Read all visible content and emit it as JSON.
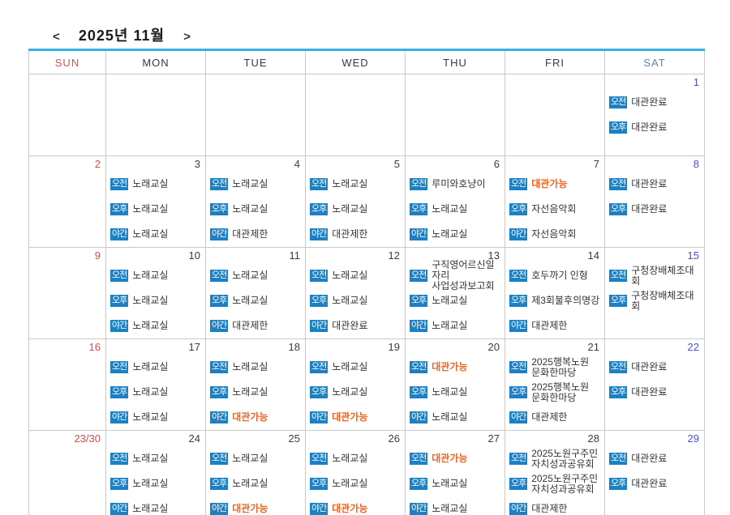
{
  "title_bar": {
    "prev": "<",
    "title": "2025년 11월",
    "next": ">"
  },
  "weekday_header": [
    "SUN",
    "MON",
    "TUE",
    "WED",
    "THU",
    "FRI",
    "SAT"
  ],
  "time_slots": {
    "morning": "오전",
    "afternoon": "오후",
    "night": "야간"
  },
  "colors": {
    "accent_top_border": "#35b2e2",
    "badge_blue": "#1b80c4",
    "highlight_orange": "#ee6420",
    "sunday_red": "#c9514e",
    "saturday_blue": "#4a50c8",
    "weekday_sun_header": "#e04b4b",
    "weekday_sat_header": "#5b85b5"
  },
  "weeks": [
    [
      {
        "date": "",
        "events": []
      },
      {
        "date": "",
        "events": []
      },
      {
        "date": "",
        "events": []
      },
      {
        "date": "",
        "events": []
      },
      {
        "date": "",
        "events": []
      },
      {
        "date": "",
        "events": []
      },
      {
        "date": "1",
        "events": [
          {
            "slot": "오전",
            "text": "대관완료",
            "highlight": false
          },
          {
            "slot": "오후",
            "text": "대관완료",
            "highlight": false
          }
        ]
      }
    ],
    [
      {
        "date": "2",
        "events": []
      },
      {
        "date": "3",
        "events": [
          {
            "slot": "오전",
            "text": "노래교실",
            "highlight": false
          },
          {
            "slot": "오후",
            "text": "노래교실",
            "highlight": false
          },
          {
            "slot": "야간",
            "text": "노래교실",
            "highlight": false
          }
        ]
      },
      {
        "date": "4",
        "events": [
          {
            "slot": "오전",
            "text": "노래교실",
            "highlight": false
          },
          {
            "slot": "오후",
            "text": "노래교실",
            "highlight": false
          },
          {
            "slot": "야간",
            "text": "대관제한",
            "highlight": false
          }
        ]
      },
      {
        "date": "5",
        "events": [
          {
            "slot": "오전",
            "text": "노래교실",
            "highlight": false
          },
          {
            "slot": "오후",
            "text": "노래교실",
            "highlight": false
          },
          {
            "slot": "야간",
            "text": "대관제한",
            "highlight": false
          }
        ]
      },
      {
        "date": "6",
        "events": [
          {
            "slot": "오전",
            "text": "루미와호냥이",
            "highlight": false
          },
          {
            "slot": "오후",
            "text": "노래교실",
            "highlight": false
          },
          {
            "slot": "야간",
            "text": "노래교실",
            "highlight": false
          }
        ]
      },
      {
        "date": "7",
        "events": [
          {
            "slot": "오전",
            "text": "대관가능",
            "highlight": true
          },
          {
            "slot": "오후",
            "text": "자선음악회",
            "highlight": false
          },
          {
            "slot": "야간",
            "text": "자선음악회",
            "highlight": false
          }
        ]
      },
      {
        "date": "8",
        "events": [
          {
            "slot": "오전",
            "text": "대관완료",
            "highlight": false
          },
          {
            "slot": "오후",
            "text": "대관완료",
            "highlight": false
          }
        ]
      }
    ],
    [
      {
        "date": "9",
        "events": []
      },
      {
        "date": "10",
        "events": [
          {
            "slot": "오전",
            "text": "노래교실",
            "highlight": false
          },
          {
            "slot": "오후",
            "text": "노래교실",
            "highlight": false
          },
          {
            "slot": "야간",
            "text": "노래교실",
            "highlight": false
          }
        ]
      },
      {
        "date": "11",
        "events": [
          {
            "slot": "오전",
            "text": "노래교실",
            "highlight": false
          },
          {
            "slot": "오후",
            "text": "노래교실",
            "highlight": false
          },
          {
            "slot": "야간",
            "text": "대관제한",
            "highlight": false
          }
        ]
      },
      {
        "date": "12",
        "events": [
          {
            "slot": "오전",
            "text": "노래교실",
            "highlight": false
          },
          {
            "slot": "오후",
            "text": "노래교실",
            "highlight": false
          },
          {
            "slot": "야간",
            "text": "대관완료",
            "highlight": false
          }
        ]
      },
      {
        "date": "13",
        "events": [
          {
            "slot": "오전",
            "text": "구직영어르신일자리\n사업성과보고회",
            "highlight": false
          },
          {
            "slot": "오후",
            "text": "노래교실",
            "highlight": false
          },
          {
            "slot": "야간",
            "text": "노래교실",
            "highlight": false
          }
        ]
      },
      {
        "date": "14",
        "events": [
          {
            "slot": "오전",
            "text": "호두까기 인형",
            "highlight": false
          },
          {
            "slot": "오후",
            "text": "제3회불후의명강",
            "highlight": false
          },
          {
            "slot": "야간",
            "text": "대관제한",
            "highlight": false
          }
        ]
      },
      {
        "date": "15",
        "events": [
          {
            "slot": "오전",
            "text": "구청장배체조대회",
            "highlight": false
          },
          {
            "slot": "오후",
            "text": "구청장배체조대회",
            "highlight": false
          }
        ]
      }
    ],
    [
      {
        "date": "16",
        "events": []
      },
      {
        "date": "17",
        "events": [
          {
            "slot": "오전",
            "text": "노래교실",
            "highlight": false
          },
          {
            "slot": "오후",
            "text": "노래교실",
            "highlight": false
          },
          {
            "slot": "야간",
            "text": "노래교실",
            "highlight": false
          }
        ]
      },
      {
        "date": "18",
        "events": [
          {
            "slot": "오전",
            "text": "노래교실",
            "highlight": false
          },
          {
            "slot": "오후",
            "text": "노래교실",
            "highlight": false
          },
          {
            "slot": "야간",
            "text": "대관가능",
            "highlight": true
          }
        ]
      },
      {
        "date": "19",
        "events": [
          {
            "slot": "오전",
            "text": "노래교실",
            "highlight": false
          },
          {
            "slot": "오후",
            "text": "노래교실",
            "highlight": false
          },
          {
            "slot": "야간",
            "text": "대관가능",
            "highlight": true
          }
        ]
      },
      {
        "date": "20",
        "events": [
          {
            "slot": "오전",
            "text": "대관가능",
            "highlight": true
          },
          {
            "slot": "오후",
            "text": "노래교실",
            "highlight": false
          },
          {
            "slot": "야간",
            "text": "노래교실",
            "highlight": false
          }
        ]
      },
      {
        "date": "21",
        "events": [
          {
            "slot": "오전",
            "text": "2025행복노원\n문화한마당",
            "highlight": false
          },
          {
            "slot": "오후",
            "text": "2025행복노원\n문화한마당",
            "highlight": false
          },
          {
            "slot": "야간",
            "text": "대관제한",
            "highlight": false
          }
        ]
      },
      {
        "date": "22",
        "events": [
          {
            "slot": "오전",
            "text": "대관완료",
            "highlight": false
          },
          {
            "slot": "오후",
            "text": "대관완료",
            "highlight": false
          }
        ]
      }
    ],
    [
      {
        "date": "23/30",
        "events": []
      },
      {
        "date": "24",
        "events": [
          {
            "slot": "오전",
            "text": "노래교실",
            "highlight": false
          },
          {
            "slot": "오후",
            "text": "노래교실",
            "highlight": false
          },
          {
            "slot": "야간",
            "text": "노래교실",
            "highlight": false
          }
        ]
      },
      {
        "date": "25",
        "events": [
          {
            "slot": "오전",
            "text": "노래교실",
            "highlight": false
          },
          {
            "slot": "오후",
            "text": "노래교실",
            "highlight": false
          },
          {
            "slot": "야간",
            "text": "대관가능",
            "highlight": true
          }
        ]
      },
      {
        "date": "26",
        "events": [
          {
            "slot": "오전",
            "text": "노래교실",
            "highlight": false
          },
          {
            "slot": "오후",
            "text": "노래교실",
            "highlight": false
          },
          {
            "slot": "야간",
            "text": "대관가능",
            "highlight": true
          }
        ]
      },
      {
        "date": "27",
        "events": [
          {
            "slot": "오전",
            "text": "대관가능",
            "highlight": true
          },
          {
            "slot": "오후",
            "text": "노래교실",
            "highlight": false
          },
          {
            "slot": "야간",
            "text": "노래교실",
            "highlight": false
          }
        ]
      },
      {
        "date": "28",
        "events": [
          {
            "slot": "오전",
            "text": "2025노원구주민\n자치성과공유회",
            "highlight": false
          },
          {
            "slot": "오후",
            "text": "2025노원구주민\n자치성과공유회",
            "highlight": false
          },
          {
            "slot": "야간",
            "text": "대관제한",
            "highlight": false
          }
        ]
      },
      {
        "date": "29",
        "events": [
          {
            "slot": "오전",
            "text": "대관완료",
            "highlight": false
          },
          {
            "slot": "오후",
            "text": "대관완료",
            "highlight": false
          }
        ]
      }
    ]
  ]
}
